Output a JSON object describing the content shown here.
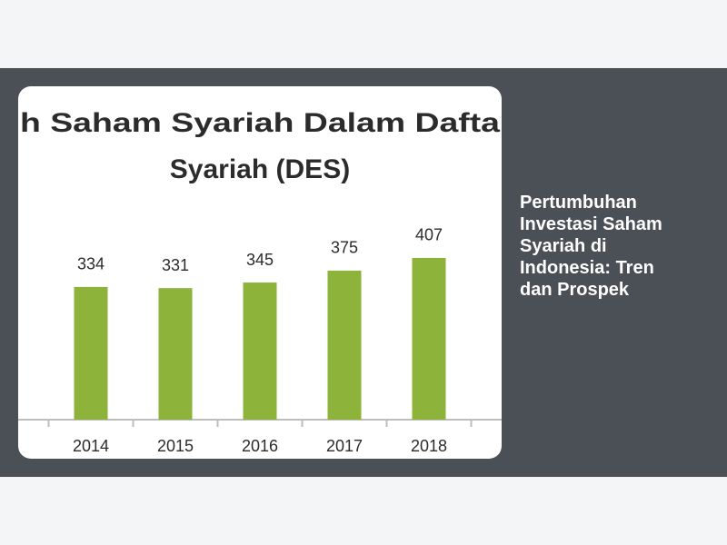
{
  "card": {
    "caption": "Pertumbuhan Investasi Saham Syariah di Indonesia: Tren dan Prospek"
  },
  "chart_data": {
    "type": "bar",
    "title_lines": [
      "h Saham Syariah Dalam Dafta",
      "Syariah (DES)"
    ],
    "categories": [
      "2014",
      "2015",
      "2016",
      "2017",
      "2018"
    ],
    "values": [
      334,
      331,
      345,
      375,
      407
    ],
    "color": "#8db33a",
    "ylim": [
      0,
      450
    ]
  }
}
